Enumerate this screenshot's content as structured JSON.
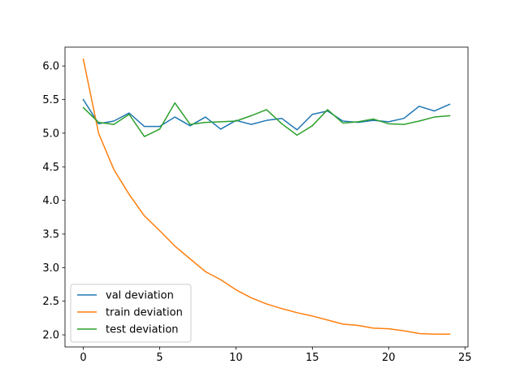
{
  "chart_data": {
    "type": "line",
    "title": "",
    "xlabel": "",
    "ylabel": "",
    "xlim": [
      -1.2,
      25.2
    ],
    "ylim": [
      1.82,
      6.28
    ],
    "grid": false,
    "legend_position": "lower-left",
    "x_ticks": [
      0,
      5,
      10,
      15,
      20,
      25
    ],
    "y_ticks": [
      2.0,
      2.5,
      3.0,
      3.5,
      4.0,
      4.5,
      5.0,
      5.5,
      6.0
    ],
    "x": [
      0,
      1,
      2,
      3,
      4,
      5,
      6,
      7,
      8,
      9,
      10,
      11,
      12,
      13,
      14,
      15,
      16,
      17,
      18,
      19,
      20,
      21,
      22,
      23,
      24
    ],
    "series": [
      {
        "name": "val deviation",
        "color": "#1f77b4",
        "values": [
          5.5,
          5.14,
          5.18,
          5.3,
          5.1,
          5.1,
          5.24,
          5.11,
          5.24,
          5.06,
          5.19,
          5.13,
          5.19,
          5.22,
          5.05,
          5.28,
          5.33,
          5.18,
          5.16,
          5.19,
          5.17,
          5.22,
          5.4,
          5.33,
          5.43
        ]
      },
      {
        "name": "train deviation",
        "color": "#ff7f0e",
        "values": [
          6.1,
          5.0,
          4.46,
          4.09,
          3.77,
          3.55,
          3.32,
          3.13,
          2.94,
          2.82,
          2.67,
          2.55,
          2.46,
          2.39,
          2.33,
          2.28,
          2.22,
          2.16,
          2.14,
          2.1,
          2.09,
          2.06,
          2.02,
          2.01,
          2.01
        ]
      },
      {
        "name": "test deviation",
        "color": "#2ca02c",
        "values": [
          5.38,
          5.16,
          5.13,
          5.28,
          4.95,
          5.06,
          5.45,
          5.13,
          5.16,
          5.17,
          5.18,
          5.26,
          5.35,
          5.14,
          4.97,
          5.11,
          5.35,
          5.15,
          5.17,
          5.21,
          5.14,
          5.13,
          5.18,
          5.24,
          5.26
        ]
      }
    ]
  }
}
